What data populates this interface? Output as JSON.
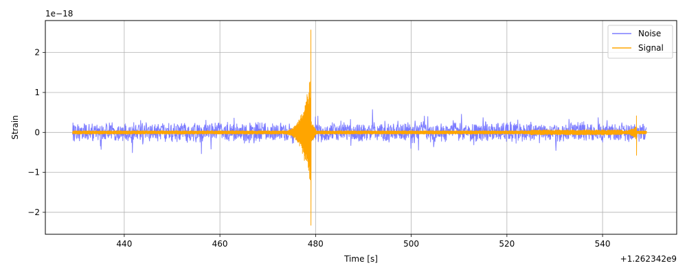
{
  "chart_data": {
    "type": "line",
    "xlabel": "Time [s]",
    "ylabel": "Strain",
    "x_offset_label": "+1.262342e9",
    "y_scale_label": "1e−18",
    "xlim": [
      423.5,
      555.5
    ],
    "ylim": [
      -2.55,
      2.8
    ],
    "x_ticks": [
      440,
      460,
      480,
      500,
      520,
      540
    ],
    "y_ticks": [
      -2,
      -1,
      0,
      1,
      2
    ],
    "x_tick_labels": [
      "440",
      "460",
      "480",
      "500",
      "520",
      "540"
    ],
    "y_tick_labels": [
      "−2",
      "−1",
      "0",
      "1",
      "2"
    ],
    "grid": true,
    "legend_position": "top-right",
    "series": [
      {
        "name": "Noise",
        "color": "#7b7bff",
        "x_range": [
          429.2,
          549.2
        ],
        "typical_amplitude": 0.2,
        "peak_amplitude": 0.48
      },
      {
        "name": "Signal",
        "color": "#ffa500",
        "x_range": [
          429.2,
          549.2
        ],
        "typical_amplitude": 0.05,
        "events": [
          {
            "t": 479.0,
            "peak_max": 2.57,
            "peak_min": -2.33
          },
          {
            "t": 547.1,
            "peak_max": 0.42,
            "peak_min": -0.58
          }
        ]
      }
    ]
  }
}
